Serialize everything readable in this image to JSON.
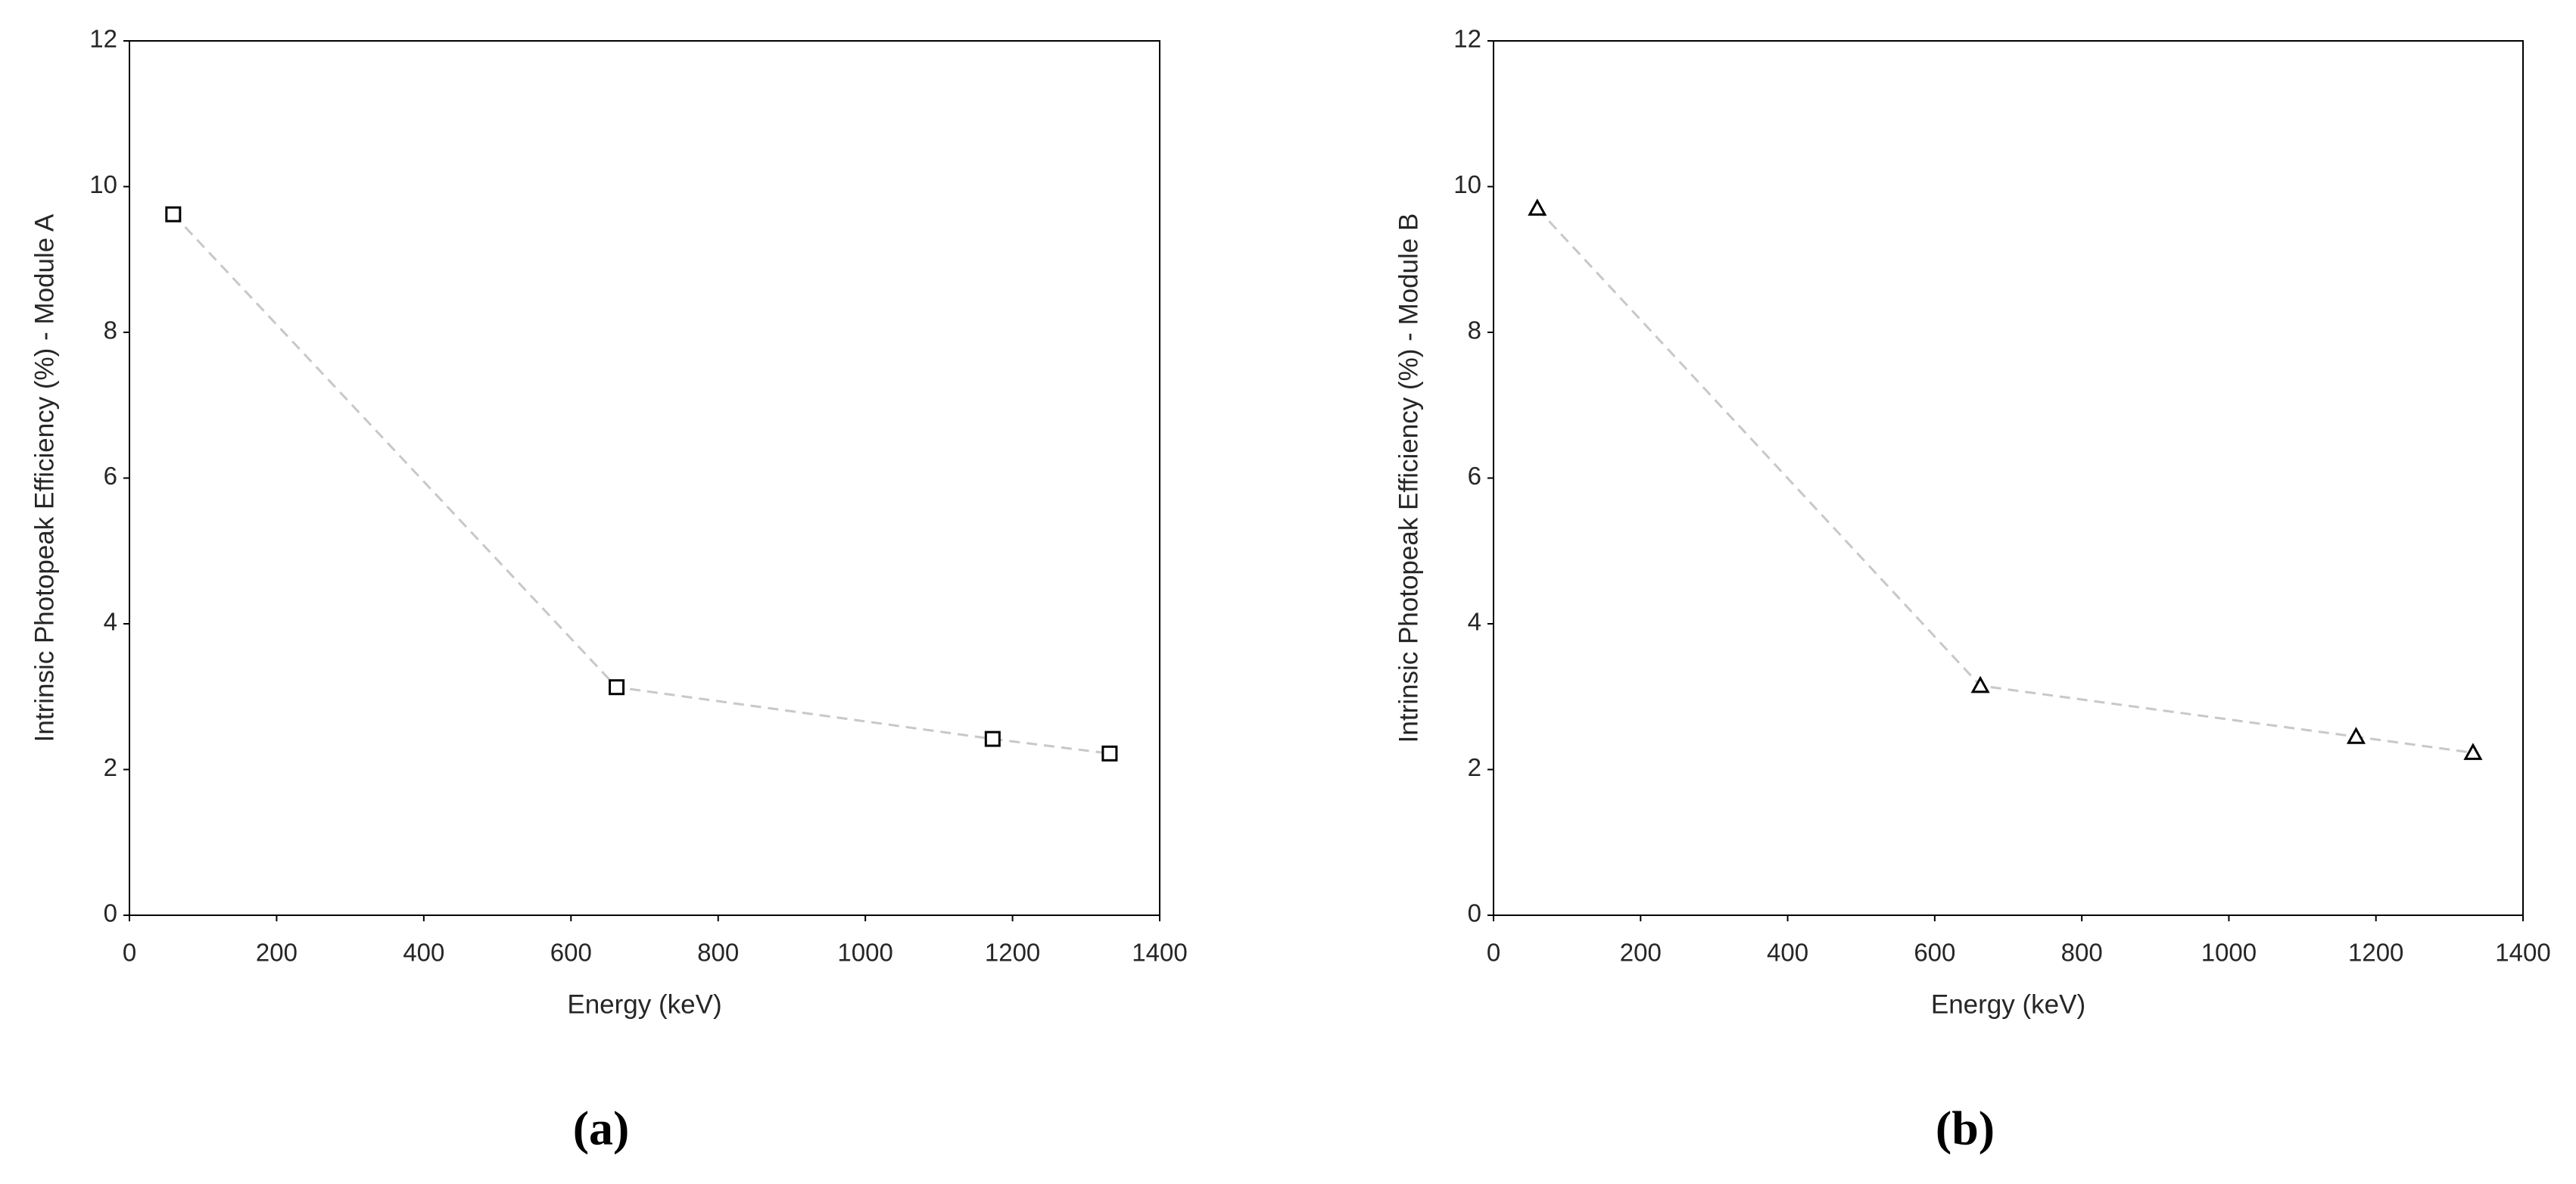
{
  "chart_data": [
    {
      "type": "scatter",
      "caption": "(a)",
      "x_label": "Energy (keV)",
      "y_label": "Intrinsic Photopeak Efficiency (%) - Module A",
      "marker": "square",
      "line_color": "#c8c8c8",
      "marker_color": "#000000",
      "x": [
        59.5,
        662,
        1173,
        1332
      ],
      "series": [
        {
          "values": [
            9.62,
            3.13,
            2.42,
            2.22
          ]
        }
      ],
      "xlim": [
        0,
        1400
      ],
      "xticks": [
        0,
        200,
        400,
        600,
        800,
        1000,
        1200,
        1400
      ],
      "ylim": [
        0,
        12
      ],
      "yticks": [
        0,
        2,
        4,
        6,
        8,
        10,
        12
      ]
    },
    {
      "type": "scatter",
      "caption": "(b)",
      "x_label": "Energy (keV)",
      "y_label": "Intrinsic Photopeak Efficiency (%) - Module B",
      "marker": "triangle",
      "line_color": "#c8c8c8",
      "marker_color": "#000000",
      "x": [
        59.5,
        662,
        1173,
        1332
      ],
      "series": [
        {
          "values": [
            9.7,
            3.15,
            2.45,
            2.23
          ]
        }
      ],
      "xlim": [
        0,
        1400
      ],
      "xticks": [
        0,
        200,
        400,
        600,
        800,
        1000,
        1200,
        1400
      ],
      "ylim": [
        0,
        12
      ],
      "yticks": [
        0,
        2,
        4,
        6,
        8,
        10,
        12
      ]
    }
  ]
}
